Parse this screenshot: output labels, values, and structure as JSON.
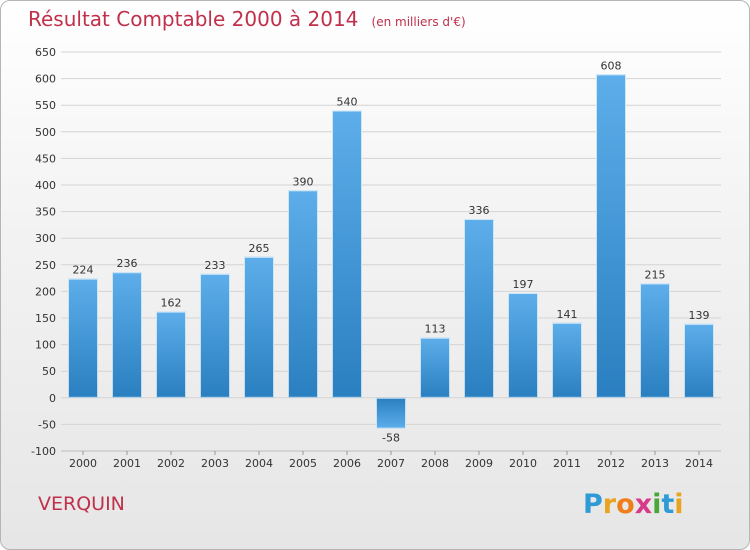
{
  "header": {
    "title": "Résultat Comptable 2000 à 2014",
    "subtitle": "(en milliers d'€)"
  },
  "footer": {
    "commune": "VERQUIN",
    "logo_letters": [
      "P",
      "r",
      "o",
      "x",
      "i",
      "t",
      "i"
    ],
    "logo_colors": [
      "#2e9bd6",
      "#e8a320",
      "#ef7d1a",
      "#d83a8a",
      "#4aa83b",
      "#2e9bd6",
      "#e8a320"
    ]
  },
  "colors": {
    "bar_light": "#5daeea",
    "bar_dark": "#2a7fc0",
    "grid": "#d4d4d4",
    "axis_text": "#333333",
    "accent": "#c0304b"
  },
  "chart_data": {
    "type": "bar",
    "title": "Résultat Comptable 2000 à 2014",
    "subtitle": "(en milliers d'€)",
    "categories": [
      "2000",
      "2001",
      "2002",
      "2003",
      "2004",
      "2005",
      "2006",
      "2007",
      "2008",
      "2009",
      "2010",
      "2011",
      "2012",
      "2013",
      "2014"
    ],
    "values": [
      224,
      236,
      162,
      233,
      265,
      390,
      540,
      -58,
      113,
      336,
      197,
      141,
      608,
      215,
      139
    ],
    "data_labels": [
      "224",
      "236",
      "162",
      "233",
      "265",
      "390",
      "540",
      "-58",
      "113",
      "336",
      "197",
      "141",
      "608",
      "215",
      "139"
    ],
    "yticks": [
      -100,
      -50,
      0,
      50,
      100,
      150,
      200,
      250,
      300,
      350,
      400,
      450,
      500,
      550,
      600,
      650
    ],
    "ylim": [
      -100,
      650
    ],
    "grid": true,
    "legend": "none"
  }
}
